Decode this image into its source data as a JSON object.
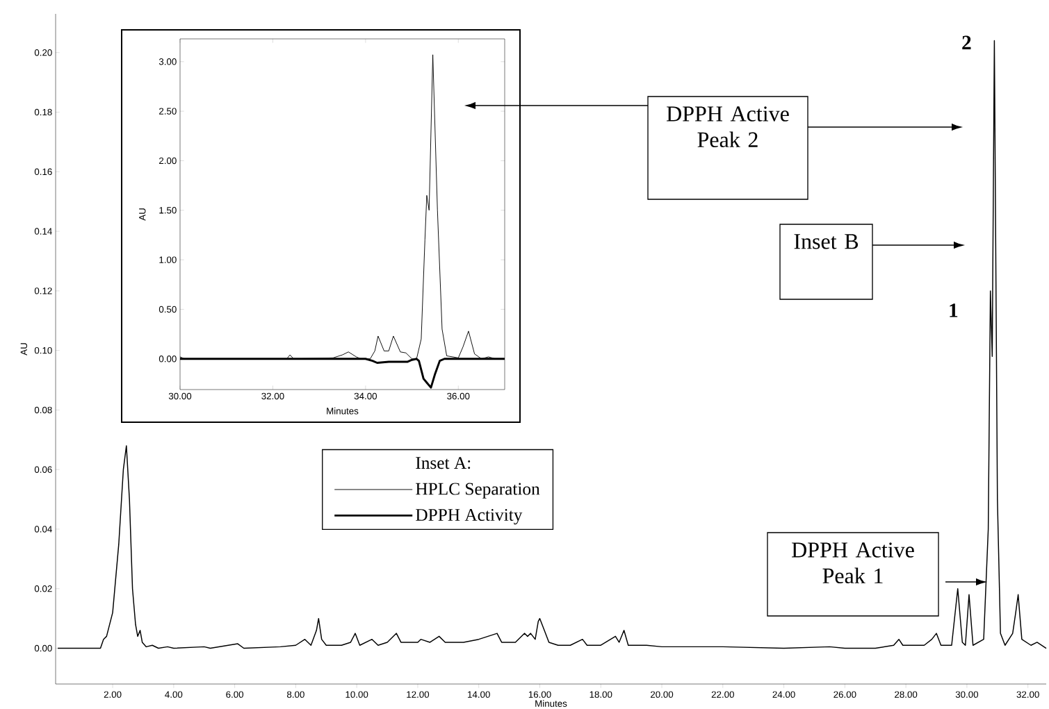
{
  "chart_data": [
    {
      "type": "line",
      "xlabel": "Minutes",
      "ylabel": "AU",
      "color": "#000000",
      "x": [
        0.2,
        1.6,
        1.7,
        1.8,
        2.0,
        2.2,
        2.35,
        2.45,
        2.55,
        2.65,
        2.75,
        2.82,
        2.9,
        2.97,
        3.1,
        3.3,
        3.5,
        3.8,
        4.0,
        5.0,
        5.2,
        6.1,
        6.3,
        7.5,
        8.0,
        8.3,
        8.5,
        8.68,
        8.75,
        8.85,
        9.0,
        9.5,
        9.8,
        9.95,
        10.1,
        10.5,
        10.7,
        11.0,
        11.3,
        11.45,
        11.7,
        12.0,
        12.1,
        12.4,
        12.7,
        12.9,
        13.5,
        14.0,
        14.3,
        14.6,
        14.75,
        15.0,
        15.2,
        15.5,
        15.6,
        15.7,
        15.85,
        15.95,
        16.0,
        16.15,
        16.3,
        16.6,
        17.0,
        17.4,
        17.55,
        18.0,
        18.48,
        18.6,
        18.76,
        18.9,
        19.5,
        20.0,
        22.0,
        24.0,
        25.5,
        26.0,
        27.0,
        27.6,
        27.77,
        27.9,
        28.6,
        28.85,
        29.0,
        29.15,
        29.5,
        29.7,
        29.85,
        29.95,
        30.07,
        30.2,
        30.55,
        30.7,
        30.77,
        30.83,
        30.9,
        31.0,
        31.1,
        31.25,
        31.5,
        31.6,
        31.68,
        31.8,
        32.1,
        32.3,
        32.6
      ],
      "values": [
        0.0,
        0.0,
        0.003,
        0.004,
        0.012,
        0.035,
        0.06,
        0.068,
        0.05,
        0.02,
        0.008,
        0.004,
        0.006,
        0.002,
        0.0005,
        0.001,
        0.0,
        0.0005,
        0.0,
        0.0005,
        0.0,
        0.0015,
        0.0,
        0.0005,
        0.001,
        0.003,
        0.001,
        0.006,
        0.01,
        0.003,
        0.001,
        0.001,
        0.002,
        0.005,
        0.001,
        0.003,
        0.001,
        0.002,
        0.005,
        0.002,
        0.002,
        0.002,
        0.003,
        0.002,
        0.004,
        0.002,
        0.002,
        0.003,
        0.004,
        0.005,
        0.002,
        0.002,
        0.002,
        0.005,
        0.004,
        0.005,
        0.003,
        0.009,
        0.01,
        0.006,
        0.002,
        0.001,
        0.001,
        0.003,
        0.001,
        0.001,
        0.004,
        0.002,
        0.006,
        0.001,
        0.001,
        0.0005,
        0.0005,
        0.0,
        0.0005,
        0.0,
        0.0,
        0.001,
        0.003,
        0.001,
        0.001,
        0.003,
        0.005,
        0.001,
        0.001,
        0.02,
        0.002,
        0.001,
        0.018,
        0.001,
        0.003,
        0.04,
        0.12,
        0.098,
        0.204,
        0.05,
        0.005,
        0.001,
        0.005,
        0.012,
        0.018,
        0.003,
        0.001,
        0.002,
        0.0
      ],
      "xlim": [
        0.13,
        32.6
      ],
      "ylim": [
        -0.012,
        0.213
      ],
      "xticks": [
        {
          "value": 2,
          "label": "2.00"
        },
        {
          "value": 4,
          "label": "4.00"
        },
        {
          "value": 6,
          "label": "6.00"
        },
        {
          "value": 8,
          "label": "8.00"
        },
        {
          "value": 10,
          "label": "10.00"
        },
        {
          "value": 12,
          "label": "12.00"
        },
        {
          "value": 14,
          "label": "14.00"
        },
        {
          "value": 16,
          "label": "16.00"
        },
        {
          "value": 18,
          "label": "18.00"
        },
        {
          "value": 20,
          "label": "20.00"
        },
        {
          "value": 22,
          "label": "22.00"
        },
        {
          "value": 24,
          "label": "24.00"
        },
        {
          "value": 26,
          "label": "26.00"
        },
        {
          "value": 28,
          "label": "28.00"
        },
        {
          "value": 30,
          "label": "30.00"
        },
        {
          "value": 32,
          "label": "32.00"
        }
      ],
      "yticks": [
        {
          "value": 0,
          "label": "0.00"
        },
        {
          "value": 0.02,
          "label": "0.02"
        },
        {
          "value": 0.04,
          "label": "0.04"
        },
        {
          "value": 0.06,
          "label": "0.06"
        },
        {
          "value": 0.08,
          "label": "0.08"
        },
        {
          "value": 0.1,
          "label": "0.10"
        },
        {
          "value": 0.12,
          "label": "0.12"
        },
        {
          "value": 0.14,
          "label": "0.14"
        },
        {
          "value": 0.16,
          "label": "0.16"
        },
        {
          "value": 0.18,
          "label": "0.18"
        },
        {
          "value": 0.2,
          "label": "0.20"
        }
      ],
      "annotations": [
        "DPPH Active Peak 2",
        "Inset B",
        {
          "text": "2",
          "x": 30.9,
          "y": 0.204
        },
        {
          "text": "1",
          "x": 30.77,
          "y": 0.12
        },
        "DPPH Active Peak 1"
      ]
    },
    {
      "type": "line",
      "xlabel": "Minutes",
      "ylabel": "AU",
      "legend_title": "Inset A:",
      "legend": "bottom",
      "series": [
        {
          "name": "HPLC Separation",
          "color": "#000000",
          "x": [
            30.0,
            30.1,
            32.3,
            32.37,
            32.45,
            33.3,
            33.5,
            33.63,
            33.8,
            33.9,
            34.1,
            34.2,
            34.27,
            34.4,
            34.5,
            34.6,
            34.75,
            34.87,
            35.0,
            35.1,
            35.2,
            35.28,
            35.32,
            35.37,
            35.45,
            35.55,
            35.65,
            35.75,
            36.0,
            36.1,
            36.22,
            36.35,
            36.5,
            36.65,
            36.8,
            37.0
          ],
          "values": [
            0.02,
            0.0,
            0.0,
            0.04,
            0.0,
            0.01,
            0.04,
            0.07,
            0.02,
            0.0,
            0.0,
            0.08,
            0.23,
            0.08,
            0.08,
            0.23,
            0.07,
            0.06,
            0.0,
            0.0,
            0.2,
            1.2,
            1.65,
            1.5,
            3.07,
            1.5,
            0.3,
            0.03,
            0.01,
            0.12,
            0.28,
            0.05,
            0.0,
            0.02,
            0.0,
            0.0
          ]
        },
        {
          "name": "DPPH Activity",
          "color": "#000000",
          "x": [
            30.0,
            34.0,
            34.15,
            34.25,
            34.5,
            34.9,
            35.0,
            35.1,
            35.15,
            35.25,
            35.32,
            35.41,
            35.5,
            35.6,
            35.7,
            37.0
          ],
          "values": [
            0.0,
            0.0,
            -0.02,
            -0.04,
            -0.03,
            -0.03,
            -0.01,
            0.0,
            -0.02,
            -0.2,
            -0.24,
            -0.29,
            -0.15,
            -0.02,
            0.0,
            0.0
          ]
        }
      ],
      "xlim": [
        30.0,
        37.0
      ],
      "ylim": [
        -0.31,
        3.23
      ],
      "xticks": [
        {
          "value": 30,
          "label": "30.00"
        },
        {
          "value": 32,
          "label": "32.00"
        },
        {
          "value": 34,
          "label": "34.00"
        },
        {
          "value": 36,
          "label": "36.00"
        }
      ],
      "yticks": [
        {
          "value": 0,
          "label": "0.00"
        },
        {
          "value": 0.5,
          "label": "0.50"
        },
        {
          "value": 1,
          "label": "1.00"
        },
        {
          "value": 1.5,
          "label": "1.50"
        },
        {
          "value": 2,
          "label": "2.00"
        },
        {
          "value": 2.5,
          "label": "2.50"
        },
        {
          "value": 3,
          "label": "3.00"
        }
      ]
    }
  ]
}
